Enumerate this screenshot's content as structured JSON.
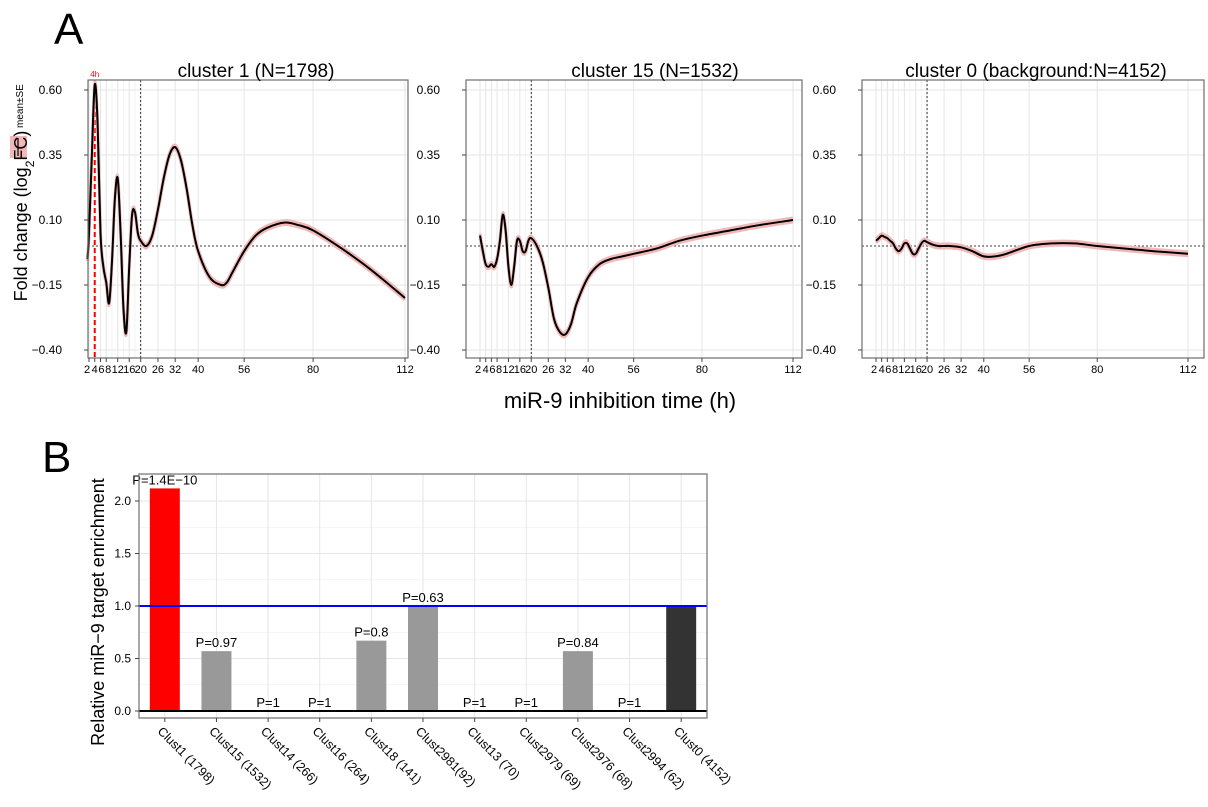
{
  "panel_labels": {
    "a": "A",
    "b": "B"
  },
  "legend": {
    "label": "mean±SE",
    "line_color": "#000000",
    "band_color": "#f2b8b8"
  },
  "chart_data": [
    {
      "type": "line",
      "title": "cluster 1 (N=1798)",
      "ylabel": "Fold change (log2FC)",
      "ylim": [
        -0.42,
        0.64
      ],
      "xlim": [
        0,
        116
      ],
      "yticks": [
        -0.4,
        -0.15,
        0.1,
        0.35,
        0.6
      ],
      "ytick_labels": [
        "-0.40",
        "-0.15",
        "0.10",
        "0.35",
        "0.60"
      ],
      "xticks": [
        2,
        4,
        6,
        8,
        12,
        16,
        20,
        26,
        32,
        40,
        56,
        80,
        112
      ],
      "xtick_labels": [
        "2",
        "4",
        "6",
        "8",
        "12",
        "16",
        "20",
        "26",
        "32",
        "40",
        "56",
        "80",
        "112"
      ],
      "hline": 0.0,
      "vline": 20,
      "highlight": {
        "x": 4,
        "label": "4h",
        "color": "#ff0000"
      },
      "series": [
        {
          "x": [
            1.5,
            2,
            3,
            4,
            5,
            6,
            7,
            8,
            9,
            10,
            11,
            12,
            13,
            14,
            15,
            16,
            17,
            18,
            19,
            20,
            22,
            24,
            26,
            28,
            30,
            32,
            34,
            36,
            38,
            40,
            44,
            48,
            50,
            52,
            56,
            60,
            64,
            70,
            75,
            80,
            90,
            100,
            112
          ],
          "y": [
            -0.05,
            0.05,
            0.35,
            0.62,
            0.47,
            0.05,
            -0.08,
            -0.14,
            -0.22,
            -0.06,
            0.18,
            0.26,
            0.05,
            -0.24,
            -0.33,
            -0.08,
            0.12,
            0.13,
            0.05,
            0.02,
            0.0,
            0.04,
            0.14,
            0.26,
            0.35,
            0.38,
            0.33,
            0.22,
            0.08,
            -0.02,
            -0.12,
            -0.15,
            -0.14,
            -0.1,
            -0.02,
            0.04,
            0.07,
            0.09,
            0.08,
            0.06,
            -0.01,
            -0.09,
            -0.2
          ]
        }
      ]
    },
    {
      "type": "line",
      "title": "cluster 15 (N=1532)",
      "ylim": [
        -0.42,
        0.64
      ],
      "xlim": [
        0,
        116
      ],
      "yticks": [
        -0.4,
        -0.15,
        0.1,
        0.35,
        0.6
      ],
      "ytick_labels": [
        "-0.40",
        "-0.15",
        "0.10",
        "0.35",
        "0.60"
      ],
      "xticks": [
        2,
        4,
        6,
        8,
        12,
        16,
        20,
        26,
        32,
        40,
        56,
        80,
        112
      ],
      "xtick_labels": [
        "2",
        "4",
        "6",
        "8",
        "12",
        "16",
        "20",
        "26",
        "32",
        "40",
        "56",
        "80",
        "112"
      ],
      "hline": 0.0,
      "vline": 20,
      "series": [
        {
          "x": [
            2,
            3,
            4,
            5,
            6,
            7,
            8,
            9,
            10,
            11,
            12,
            13,
            14,
            15,
            16,
            17,
            18,
            19,
            20,
            22,
            24,
            26,
            28,
            30,
            32,
            34,
            36,
            40,
            44,
            48,
            52,
            56,
            64,
            72,
            80,
            90,
            100,
            112
          ],
          "y": [
            0.04,
            -0.02,
            -0.07,
            -0.08,
            -0.07,
            -0.08,
            -0.05,
            0.02,
            0.12,
            0.06,
            -0.08,
            -0.15,
            -0.08,
            0.02,
            0.02,
            -0.02,
            -0.02,
            0.02,
            0.03,
            0.0,
            -0.06,
            -0.16,
            -0.28,
            -0.33,
            -0.34,
            -0.3,
            -0.22,
            -0.12,
            -0.07,
            -0.05,
            -0.04,
            -0.03,
            -0.01,
            0.02,
            0.04,
            0.06,
            0.08,
            0.1
          ]
        }
      ]
    },
    {
      "type": "line",
      "title": "cluster 0 (background:N=4152)",
      "ylim": [
        -0.42,
        0.64
      ],
      "xlim": [
        0,
        116
      ],
      "yticks": [
        -0.4,
        -0.15,
        0.1,
        0.35,
        0.6
      ],
      "ytick_labels": [
        "-0.40",
        "-0.15",
        "0.10",
        "0.35",
        "0.60"
      ],
      "xticks": [
        2,
        4,
        6,
        8,
        12,
        16,
        20,
        26,
        32,
        40,
        56,
        80,
        112
      ],
      "xtick_labels": [
        "2",
        "4",
        "6",
        "8",
        "12",
        "16",
        "20",
        "26",
        "32",
        "40",
        "56",
        "80",
        "112"
      ],
      "hline": 0.0,
      "vline": 20,
      "series": [
        {
          "x": [
            2,
            3,
            4,
            5,
            6,
            7,
            8,
            9,
            10,
            11,
            12,
            13,
            14,
            15,
            16,
            17,
            18,
            19,
            20,
            22,
            24,
            26,
            28,
            32,
            36,
            40,
            44,
            48,
            56,
            64,
            72,
            80,
            90,
            100,
            112
          ],
          "y": [
            0.02,
            0.03,
            0.04,
            0.035,
            0.03,
            0.02,
            0.01,
            -0.01,
            -0.02,
            -0.01,
            0.01,
            0.01,
            -0.01,
            -0.03,
            -0.03,
            -0.01,
            0.01,
            0.02,
            0.015,
            0.005,
            0.0,
            0.0,
            0.0,
            -0.005,
            -0.02,
            -0.04,
            -0.04,
            -0.03,
            0.0,
            0.01,
            0.01,
            0.0,
            -0.01,
            -0.02,
            -0.03
          ]
        }
      ]
    },
    {
      "type": "bar",
      "ylabel": "Relative miR-9 target enrichment",
      "ylim": [
        -0.1,
        2.25
      ],
      "yticks": [
        0.0,
        0.5,
        1.0,
        1.5,
        2.0
      ],
      "ytick_labels": [
        "0.0",
        "0.5",
        "1.0",
        "1.5",
        "2.0"
      ],
      "reference_line": {
        "y": 1.0,
        "color": "#0000ff"
      },
      "categories": [
        "Clust1 (1798)",
        "Clust15 (1532)",
        "Clust14 (266)",
        "Clust16 (264)",
        "Clust18 (141)",
        "Clust2981(92)",
        "Clust13 (70)",
        "Clust2979 (69)",
        "Clust2976 (68)",
        "Clust2994 (62)",
        "Clust0 (4152)"
      ],
      "values": [
        2.12,
        0.57,
        0.0,
        0.0,
        0.67,
        1.0,
        0.0,
        0.0,
        0.57,
        0.0,
        1.0
      ],
      "labels": [
        "P=1.4E-10",
        "P=0.97",
        "P=1",
        "P=1",
        "P=0.8",
        "P=0.63",
        "P=1",
        "P=1",
        "P=0.84",
        "P=1",
        ""
      ],
      "colors": [
        "#ff0000",
        "#999999",
        "#999999",
        "#999999",
        "#999999",
        "#999999",
        "#999999",
        "#999999",
        "#999999",
        "#999999",
        "#333333"
      ]
    }
  ],
  "shared_xlabel": "miR-9 inhibition time (h)"
}
